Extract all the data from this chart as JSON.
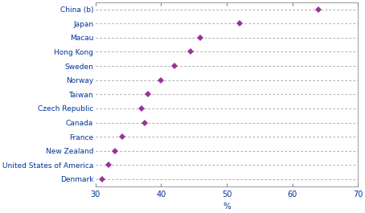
{
  "categories": [
    "China (b)",
    "Japan",
    "Macau",
    "Hong Kong",
    "Sweden",
    "Norway",
    "Taiwan",
    "Czech Republic",
    "Canada",
    "France",
    "New Zealand",
    "United States of America",
    "Denmark"
  ],
  "values": [
    64.0,
    52.0,
    46.0,
    44.5,
    42.0,
    40.0,
    38.0,
    37.0,
    37.5,
    34.0,
    33.0,
    32.0,
    31.0
  ],
  "xlim": [
    30,
    70
  ],
  "xticks": [
    30,
    40,
    50,
    60,
    70
  ],
  "xlabel": "%",
  "marker_color": "#993399",
  "marker": "D",
  "marker_size": 4,
  "dash_color": "#999999",
  "background_color": "#ffffff",
  "label_color": "#003399",
  "label_fontsize": 6.5,
  "tick_fontsize": 7,
  "xlabel_fontsize": 7.5
}
